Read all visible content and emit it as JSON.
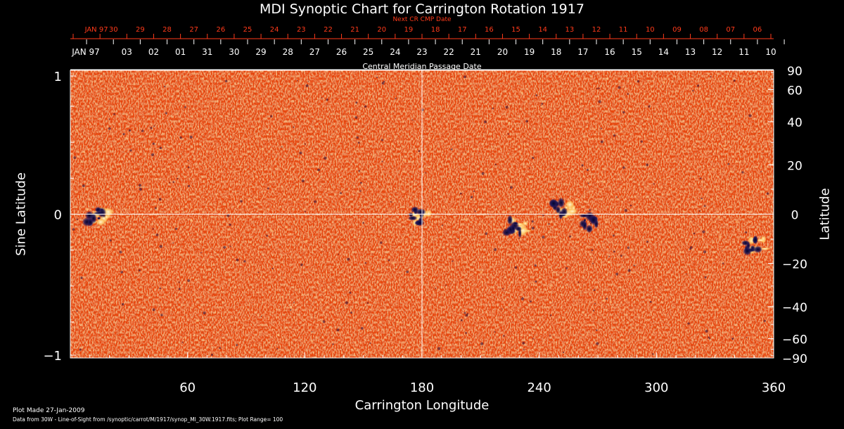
{
  "chart_title": "MDI Synoptic Chart for Carrington Rotation 1917",
  "next_cr_axis": {
    "title": "Next CR CMP Date",
    "labels": [
      "JAN 97",
      "30",
      "29",
      "28",
      "27",
      "26",
      "25",
      "24",
      "23",
      "22",
      "21",
      "20",
      "19",
      "18",
      "17",
      "16",
      "15",
      "14",
      "13",
      "12",
      "11",
      "10",
      "09",
      "08",
      "07",
      "06"
    ],
    "color": "#ff3a1a"
  },
  "cmp_axis": {
    "title": "Central Meridian Passage Date",
    "labels": [
      "JAN 97",
      "03",
      "02",
      "01",
      "31",
      "30",
      "29",
      "28",
      "27",
      "26",
      "25",
      "24",
      "23",
      "22",
      "21",
      "20",
      "19",
      "18",
      "17",
      "16",
      "15",
      "14",
      "13",
      "12",
      "11",
      "10"
    ]
  },
  "y_left": {
    "label": "Sine Latitude",
    "ticks": [
      "1",
      "0",
      "−1"
    ]
  },
  "y_right": {
    "label": "Latitude",
    "ticks": [
      "90",
      "60",
      "40",
      "20",
      "0",
      "−20",
      "−40",
      "−60",
      "−90"
    ]
  },
  "x_axis": {
    "label": "Carrington Longitude",
    "ticks": [
      "60",
      "120",
      "180",
      "240",
      "300",
      "360"
    ]
  },
  "footer": {
    "plot_made": "Plot Made 27-Jan-2009",
    "source": "Data from 30W - Line-of-Sight from /synoptic/carrot/M/1917/synop_Ml_30W.1917.fits; Plot Range=  100"
  },
  "colors": {
    "background": "#000000",
    "map_base": "#e8460a",
    "positive": "#ffe9a0",
    "negative": "#14104a",
    "axis": "#ffffff"
  },
  "active_regions": [
    {
      "lon": 252,
      "lat": 2,
      "polarity": "mixed"
    },
    {
      "lon": 178,
      "lat": -1,
      "polarity": "mixed"
    },
    {
      "lon": 228,
      "lat": -5,
      "polarity": "mixed"
    },
    {
      "lon": 14,
      "lat": -1,
      "polarity": "mixed"
    },
    {
      "lon": 350,
      "lat": -12,
      "polarity": "mixed"
    },
    {
      "lon": 268,
      "lat": -3,
      "polarity": "negative"
    }
  ]
}
